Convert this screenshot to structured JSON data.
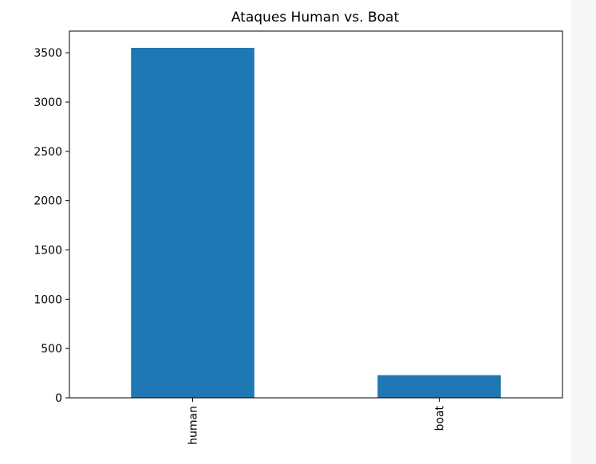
{
  "chart_data": {
    "type": "bar",
    "title": "Ataques Human vs. Boat",
    "xlabel": "",
    "ylabel": "",
    "categories": [
      "human",
      "boat"
    ],
    "values": [
      3550,
      230
    ],
    "ylim": [
      0,
      3720
    ],
    "yticks": [
      0,
      500,
      1000,
      1500,
      2000,
      2500,
      3000,
      3500
    ],
    "ytick_labels": [
      "0",
      "500",
      "1000",
      "1500",
      "2000",
      "2500",
      "3000",
      "3500"
    ],
    "bar_color": "#1f77b4",
    "grid": false,
    "legend": "none"
  }
}
